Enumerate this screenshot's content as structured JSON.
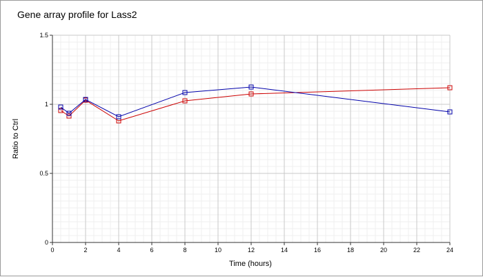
{
  "chart_data": {
    "type": "line",
    "title": "Gene array profile for Lass2",
    "xlabel": "Time (hours)",
    "ylabel": "Ratio to Ctrl",
    "xlim": [
      0,
      24
    ],
    "ylim": [
      0,
      1.5
    ],
    "x_ticks": [
      "0",
      "2",
      "4",
      "6",
      "8",
      "10",
      "12",
      "14",
      "16",
      "18",
      "20",
      "22",
      "24"
    ],
    "y_ticks": [
      "0",
      "0.5",
      "1",
      "1.5"
    ],
    "grid": true,
    "legend": "none",
    "series": [
      {
        "color": "#cc0000",
        "marker": "square",
        "x": [
          0.5,
          1,
          2,
          4,
          8,
          12,
          24
        ],
        "y": [
          0.955,
          0.915,
          1.03,
          0.88,
          1.025,
          1.075,
          1.12
        ]
      },
      {
        "color": "#0000aa",
        "marker": "square",
        "x": [
          0.5,
          1,
          2,
          4,
          8,
          12,
          24
        ],
        "y": [
          0.98,
          0.935,
          1.035,
          0.91,
          1.085,
          1.125,
          0.945
        ]
      }
    ]
  }
}
